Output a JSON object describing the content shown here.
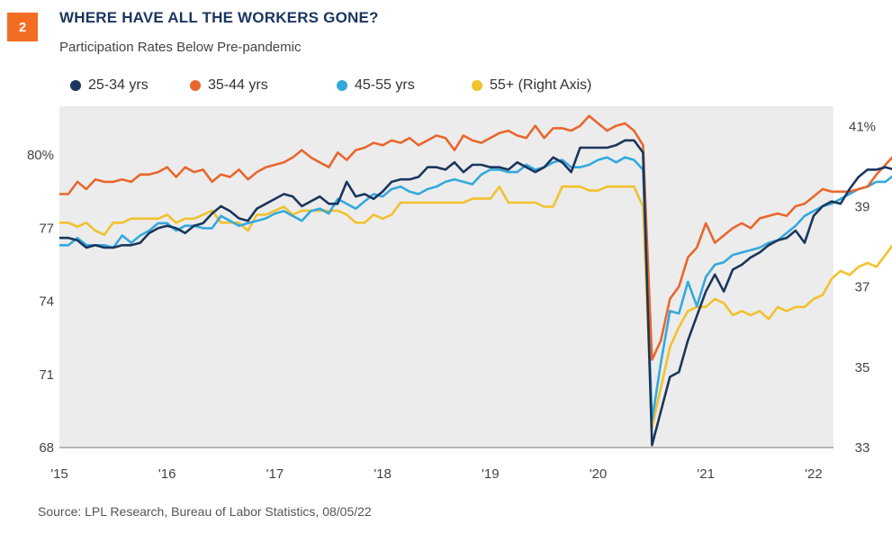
{
  "header": {
    "badge": "2",
    "title": "WHERE HAVE ALL THE WORKERS GONE?",
    "subtitle": "Participation Rates Below Pre-pandemic"
  },
  "source": "Source:  LPL Research, Bureau of Labor Statistics,  08/05/22",
  "colors": {
    "s25_34": "#1b365d",
    "s35_44": "#e8672d",
    "s45_55": "#34a9dc",
    "s55": "#f2c12e",
    "plot_bg": "#ececec",
    "badge": "#f26d21"
  },
  "chart_data": {
    "type": "line",
    "x_start": "2015-01",
    "x_end": "2022-07",
    "x_tick_labels": [
      "'15",
      "'16",
      "'17",
      "'18",
      "'19",
      "'20",
      "'21",
      "'22"
    ],
    "left_axis": {
      "ylim": [
        68,
        82
      ],
      "tick_values": [
        68,
        71,
        74,
        77,
        80
      ],
      "tick_labels": [
        "68",
        "71",
        "74",
        "77",
        "80%"
      ]
    },
    "right_axis": {
      "ylim": [
        33,
        41.5
      ],
      "tick_values": [
        33,
        35,
        37,
        39,
        41
      ],
      "tick_labels": [
        "33",
        "35",
        "37",
        "39",
        "41%"
      ]
    },
    "grid": false,
    "legend_position": "top",
    "series": [
      {
        "name": "25-34 yrs",
        "axis": "left",
        "color_key": "s25_34",
        "values": [
          76.6,
          76.6,
          76.5,
          76.2,
          76.3,
          76.2,
          76.2,
          76.3,
          76.3,
          76.4,
          76.8,
          77.0,
          77.1,
          77.0,
          76.8,
          77.1,
          77.2,
          77.6,
          77.9,
          77.7,
          77.4,
          77.3,
          77.8,
          78.0,
          78.2,
          78.4,
          78.3,
          77.9,
          78.1,
          78.3,
          78.0,
          78.0,
          78.9,
          78.3,
          78.4,
          78.2,
          78.5,
          78.9,
          79.0,
          79.0,
          79.1,
          79.5,
          79.5,
          79.4,
          79.7,
          79.3,
          79.6,
          79.6,
          79.5,
          79.5,
          79.4,
          79.7,
          79.5,
          79.3,
          79.5,
          79.9,
          79.7,
          79.3,
          80.3,
          80.3,
          80.3,
          80.3,
          80.4,
          80.6,
          80.6,
          80.1,
          68.1,
          69.5,
          70.9,
          71.1,
          72.4,
          73.4,
          74.4,
          75.1,
          74.4,
          75.3,
          75.5,
          75.8,
          76.0,
          76.3,
          76.5,
          76.6,
          76.9,
          76.4,
          77.5,
          77.9,
          78.1,
          78.0,
          78.6,
          79.1,
          79.4,
          79.4,
          79.5,
          79.4,
          79.9,
          80.3,
          80.5,
          80.8,
          80.4,
          80.4
        ]
      },
      {
        "name": "35-44 yrs",
        "axis": "left",
        "color_key": "s35_44",
        "values": [
          78.4,
          78.4,
          78.9,
          78.6,
          79.0,
          78.9,
          78.9,
          79.0,
          78.9,
          79.2,
          79.2,
          79.3,
          79.5,
          79.1,
          79.5,
          79.3,
          79.4,
          78.9,
          79.2,
          79.1,
          79.4,
          79.0,
          79.3,
          79.5,
          79.6,
          79.7,
          79.9,
          80.2,
          79.9,
          79.7,
          79.5,
          80.1,
          79.8,
          80.2,
          80.3,
          80.5,
          80.4,
          80.6,
          80.5,
          80.7,
          80.4,
          80.6,
          80.8,
          80.7,
          80.2,
          80.8,
          80.6,
          80.5,
          80.7,
          80.9,
          81.0,
          80.8,
          80.7,
          81.2,
          80.7,
          81.1,
          81.1,
          81.0,
          81.2,
          81.6,
          81.3,
          81.0,
          81.2,
          81.3,
          81.0,
          80.4,
          71.6,
          72.4,
          74.1,
          74.6,
          75.8,
          76.2,
          77.2,
          76.4,
          76.7,
          77.0,
          77.2,
          77.0,
          77.4,
          77.5,
          77.6,
          77.5,
          77.9,
          78.0,
          78.3,
          78.6,
          78.5,
          78.5,
          78.5,
          78.6,
          78.7,
          79.2,
          79.6,
          80.0,
          80.4,
          80.6,
          80.5,
          80.5,
          80.1,
          80.4
        ]
      },
      {
        "name": "45-55 yrs",
        "axis": "left",
        "color_key": "s45_55",
        "values": [
          76.3,
          76.3,
          76.6,
          76.3,
          76.3,
          76.3,
          76.2,
          76.7,
          76.4,
          76.7,
          76.9,
          77.2,
          77.2,
          76.9,
          77.1,
          77.1,
          77.0,
          77.0,
          77.5,
          77.3,
          77.1,
          77.2,
          77.3,
          77.4,
          77.6,
          77.7,
          77.5,
          77.3,
          77.7,
          77.8,
          77.6,
          78.2,
          78.0,
          77.8,
          78.1,
          78.4,
          78.3,
          78.6,
          78.7,
          78.5,
          78.4,
          78.6,
          78.7,
          78.9,
          79.0,
          78.9,
          78.8,
          79.2,
          79.4,
          79.4,
          79.3,
          79.3,
          79.6,
          79.4,
          79.5,
          79.7,
          79.8,
          79.5,
          79.5,
          79.6,
          79.8,
          79.9,
          79.7,
          79.9,
          79.8,
          79.4,
          69.1,
          71.5,
          73.6,
          73.5,
          74.8,
          73.8,
          75.0,
          75.5,
          75.6,
          75.9,
          76.0,
          76.1,
          76.2,
          76.4,
          76.5,
          76.8,
          77.1,
          77.5,
          77.7,
          77.9,
          78.0,
          78.2,
          78.4,
          78.6,
          78.7,
          78.9,
          78.9,
          79.2,
          79.1,
          78.9,
          78.9,
          79.1,
          79.2,
          79.3
        ]
      },
      {
        "name": "55+ (Right Axis)",
        "axis": "right",
        "color_key": "s55",
        "values": [
          38.6,
          38.6,
          38.5,
          38.6,
          38.4,
          38.3,
          38.6,
          38.6,
          38.7,
          38.7,
          38.7,
          38.7,
          38.8,
          38.6,
          38.7,
          38.7,
          38.8,
          38.9,
          38.6,
          38.6,
          38.6,
          38.4,
          38.8,
          38.8,
          38.9,
          39.0,
          38.8,
          38.9,
          38.9,
          38.9,
          38.9,
          38.9,
          38.8,
          38.6,
          38.6,
          38.8,
          38.7,
          38.8,
          39.1,
          39.1,
          39.1,
          39.1,
          39.1,
          39.1,
          39.1,
          39.1,
          39.2,
          39.2,
          39.2,
          39.5,
          39.1,
          39.1,
          39.1,
          39.1,
          39.0,
          39.0,
          39.5,
          39.5,
          39.5,
          39.4,
          39.4,
          39.5,
          39.5,
          39.5,
          39.5,
          39.0,
          33.5,
          34.5,
          35.5,
          36.0,
          36.4,
          36.5,
          36.5,
          36.7,
          36.6,
          36.3,
          36.4,
          36.3,
          36.4,
          36.2,
          36.5,
          36.4,
          36.5,
          36.5,
          36.7,
          36.8,
          37.2,
          37.4,
          37.3,
          37.5,
          37.6,
          37.5,
          37.8,
          38.1,
          38.2,
          38.1,
          37.9,
          38.0,
          37.7,
          37.8
        ]
      }
    ]
  }
}
